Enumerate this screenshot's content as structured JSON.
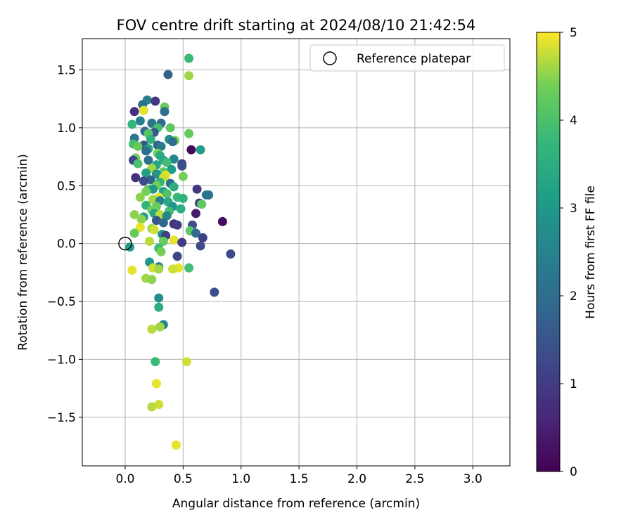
{
  "chart_data": {
    "type": "scatter",
    "title": "FOV centre drift starting at 2024/08/10 21:42:54",
    "xlabel": "Angular distance from reference (arcmin)",
    "ylabel": "Rotation from reference (arcmin)",
    "xlim": [
      -0.37,
      3.32
    ],
    "ylim": [
      -1.92,
      1.77
    ],
    "xticks": [
      "0.0",
      "0.5",
      "1.0",
      "1.5",
      "2.0",
      "2.5",
      "3.0"
    ],
    "yticks": [
      "−1.5",
      "−1.0",
      "−0.5",
      "0.0",
      "0.5",
      "1.0",
      "1.5"
    ],
    "grid": true,
    "legend": {
      "placement": "top-right",
      "entries": [
        "Reference platepar"
      ]
    },
    "reference_point": {
      "x": 0.0,
      "y": 0.0
    },
    "colorbar": {
      "label": "Hours from first FF file",
      "colormap": "viridis",
      "range": [
        0,
        5
      ],
      "ticks": [
        "0",
        "1",
        "2",
        "3",
        "4",
        "5"
      ]
    },
    "points": [
      {
        "x": 0.55,
        "y": 1.6,
        "h": 3.8
      },
      {
        "x": 0.37,
        "y": 1.46,
        "h": 1.8
      },
      {
        "x": 0.55,
        "y": 1.45,
        "h": 4.6
      },
      {
        "x": 0.19,
        "y": 1.24,
        "h": 2.5
      },
      {
        "x": 0.26,
        "y": 1.23,
        "h": 0.9
      },
      {
        "x": 0.15,
        "y": 1.2,
        "h": 2.1
      },
      {
        "x": 0.34,
        "y": 1.18,
        "h": 4.3
      },
      {
        "x": 0.08,
        "y": 1.14,
        "h": 0.8
      },
      {
        "x": 0.16,
        "y": 1.15,
        "h": 4.9
      },
      {
        "x": 0.34,
        "y": 1.14,
        "h": 2.0
      },
      {
        "x": 0.13,
        "y": 1.06,
        "h": 2.4
      },
      {
        "x": 0.23,
        "y": 1.04,
        "h": 2.2
      },
      {
        "x": 0.31,
        "y": 1.04,
        "h": 2.0
      },
      {
        "x": 0.06,
        "y": 1.03,
        "h": 3.7
      },
      {
        "x": 0.28,
        "y": 1.0,
        "h": 3.9
      },
      {
        "x": 0.39,
        "y": 1.0,
        "h": 4.2
      },
      {
        "x": 0.17,
        "y": 0.97,
        "h": 1.9
      },
      {
        "x": 0.25,
        "y": 0.96,
        "h": 1.6
      },
      {
        "x": 0.2,
        "y": 0.95,
        "h": 4.1
      },
      {
        "x": 0.55,
        "y": 0.95,
        "h": 4.3
      },
      {
        "x": 0.08,
        "y": 0.91,
        "h": 2.2
      },
      {
        "x": 0.22,
        "y": 0.9,
        "h": 3.6
      },
      {
        "x": 0.38,
        "y": 0.9,
        "h": 2.8
      },
      {
        "x": 0.43,
        "y": 0.89,
        "h": 4.4
      },
      {
        "x": 0.41,
        "y": 0.88,
        "h": 2.0
      },
      {
        "x": 0.07,
        "y": 0.86,
        "h": 3.9
      },
      {
        "x": 0.16,
        "y": 0.85,
        "h": 1.5
      },
      {
        "x": 0.28,
        "y": 0.85,
        "h": 1.8
      },
      {
        "x": 0.31,
        "y": 0.84,
        "h": 2.3
      },
      {
        "x": 0.11,
        "y": 0.84,
        "h": 4.3
      },
      {
        "x": 0.2,
        "y": 0.82,
        "h": 3.3
      },
      {
        "x": 0.57,
        "y": 0.81,
        "h": 0.1
      },
      {
        "x": 0.65,
        "y": 0.81,
        "h": 3.1
      },
      {
        "x": 0.18,
        "y": 0.8,
        "h": 2.0
      },
      {
        "x": 0.28,
        "y": 0.78,
        "h": 4.4
      },
      {
        "x": 0.3,
        "y": 0.76,
        "h": 3.5
      },
      {
        "x": 0.09,
        "y": 0.74,
        "h": 4.4
      },
      {
        "x": 0.42,
        "y": 0.73,
        "h": 2.6
      },
      {
        "x": 0.07,
        "y": 0.72,
        "h": 1.2
      },
      {
        "x": 0.2,
        "y": 0.72,
        "h": 2.1
      },
      {
        "x": 0.33,
        "y": 0.72,
        "h": 3.4
      },
      {
        "x": 0.36,
        "y": 0.7,
        "h": 3.9
      },
      {
        "x": 0.49,
        "y": 0.69,
        "h": 1.2
      },
      {
        "x": 0.11,
        "y": 0.69,
        "h": 4.0
      },
      {
        "x": 0.27,
        "y": 0.68,
        "h": 3.3
      },
      {
        "x": 0.49,
        "y": 0.67,
        "h": 1.4
      },
      {
        "x": 0.23,
        "y": 0.65,
        "h": 4.6
      },
      {
        "x": 0.4,
        "y": 0.64,
        "h": 3.1
      },
      {
        "x": 0.33,
        "y": 0.62,
        "h": 4.2
      },
      {
        "x": 0.18,
        "y": 0.61,
        "h": 3.2
      },
      {
        "x": 0.27,
        "y": 0.6,
        "h": 2.9
      },
      {
        "x": 0.35,
        "y": 0.59,
        "h": 4.9
      },
      {
        "x": 0.5,
        "y": 0.58,
        "h": 4.4
      },
      {
        "x": 0.33,
        "y": 0.57,
        "h": 4.8
      },
      {
        "x": 0.09,
        "y": 0.57,
        "h": 0.8
      },
      {
        "x": 0.22,
        "y": 0.55,
        "h": 1.8
      },
      {
        "x": 0.16,
        "y": 0.54,
        "h": 1.3
      },
      {
        "x": 0.3,
        "y": 0.53,
        "h": 3.7
      },
      {
        "x": 0.39,
        "y": 0.52,
        "h": 2.1
      },
      {
        "x": 0.27,
        "y": 0.5,
        "h": 4.4
      },
      {
        "x": 0.42,
        "y": 0.49,
        "h": 3.5
      },
      {
        "x": 0.2,
        "y": 0.47,
        "h": 4.2
      },
      {
        "x": 0.24,
        "y": 0.47,
        "h": 3.0
      },
      {
        "x": 0.62,
        "y": 0.47,
        "h": 0.9
      },
      {
        "x": 0.18,
        "y": 0.45,
        "h": 4.4
      },
      {
        "x": 0.33,
        "y": 0.45,
        "h": 3.2
      },
      {
        "x": 0.36,
        "y": 0.43,
        "h": 4.0
      },
      {
        "x": 0.7,
        "y": 0.42,
        "h": 2.2
      },
      {
        "x": 0.72,
        "y": 0.42,
        "h": 2.1
      },
      {
        "x": 0.13,
        "y": 0.4,
        "h": 4.5
      },
      {
        "x": 0.29,
        "y": 0.4,
        "h": 4.9
      },
      {
        "x": 0.45,
        "y": 0.4,
        "h": 3.8
      },
      {
        "x": 0.5,
        "y": 0.39,
        "h": 3.6
      },
      {
        "x": 0.24,
        "y": 0.38,
        "h": 4.6
      },
      {
        "x": 0.3,
        "y": 0.37,
        "h": 2.4
      },
      {
        "x": 0.37,
        "y": 0.36,
        "h": 3.4
      },
      {
        "x": 0.64,
        "y": 0.35,
        "h": 1.1
      },
      {
        "x": 0.66,
        "y": 0.34,
        "h": 4.2
      },
      {
        "x": 0.18,
        "y": 0.33,
        "h": 3.7
      },
      {
        "x": 0.27,
        "y": 0.32,
        "h": 4.3
      },
      {
        "x": 0.41,
        "y": 0.32,
        "h": 2.9
      },
      {
        "x": 0.48,
        "y": 0.3,
        "h": 3.5
      },
      {
        "x": 0.23,
        "y": 0.29,
        "h": 4.4
      },
      {
        "x": 0.38,
        "y": 0.28,
        "h": 3.9
      },
      {
        "x": 0.61,
        "y": 0.26,
        "h": 0.4
      },
      {
        "x": 0.25,
        "y": 0.26,
        "h": 3.3
      },
      {
        "x": 0.08,
        "y": 0.25,
        "h": 4.5
      },
      {
        "x": 0.3,
        "y": 0.25,
        "h": 4.7
      },
      {
        "x": 0.36,
        "y": 0.24,
        "h": 2.6
      },
      {
        "x": 0.16,
        "y": 0.23,
        "h": 3.2
      },
      {
        "x": 0.14,
        "y": 0.21,
        "h": 4.5
      },
      {
        "x": 0.27,
        "y": 0.2,
        "h": 1.5
      },
      {
        "x": 0.84,
        "y": 0.19,
        "h": 0.2
      },
      {
        "x": 0.33,
        "y": 0.18,
        "h": 1.9
      },
      {
        "x": 0.42,
        "y": 0.17,
        "h": 0.8
      },
      {
        "x": 0.45,
        "y": 0.16,
        "h": 1.0
      },
      {
        "x": 0.58,
        "y": 0.16,
        "h": 1.4
      },
      {
        "x": 0.13,
        "y": 0.14,
        "h": 4.9
      },
      {
        "x": 0.23,
        "y": 0.13,
        "h": 4.6
      },
      {
        "x": 0.25,
        "y": 0.12,
        "h": 4.8
      },
      {
        "x": 0.56,
        "y": 0.11,
        "h": 4.2
      },
      {
        "x": 0.61,
        "y": 0.09,
        "h": 2.0
      },
      {
        "x": 0.08,
        "y": 0.09,
        "h": 4.3
      },
      {
        "x": 0.32,
        "y": 0.08,
        "h": 2.9
      },
      {
        "x": 0.35,
        "y": 0.07,
        "h": 1.0
      },
      {
        "x": 0.67,
        "y": 0.05,
        "h": 1.1
      },
      {
        "x": 0.42,
        "y": 0.03,
        "h": 4.9
      },
      {
        "x": 0.21,
        "y": 0.02,
        "h": 4.7
      },
      {
        "x": 0.33,
        "y": 0.02,
        "h": 4.3
      },
      {
        "x": 0.49,
        "y": 0.01,
        "h": 1.0
      },
      {
        "x": 0.65,
        "y": -0.02,
        "h": 1.3
      },
      {
        "x": 0.04,
        "y": -0.03,
        "h": 3.1
      },
      {
        "x": 0.29,
        "y": -0.04,
        "h": 3.8
      },
      {
        "x": 0.31,
        "y": -0.07,
        "h": 4.4
      },
      {
        "x": 0.91,
        "y": -0.09,
        "h": 1.3
      },
      {
        "x": 0.45,
        "y": -0.11,
        "h": 1.2
      },
      {
        "x": 0.21,
        "y": -0.16,
        "h": 3.0
      },
      {
        "x": 0.29,
        "y": -0.2,
        "h": 2.4
      },
      {
        "x": 0.24,
        "y": -0.21,
        "h": 4.8
      },
      {
        "x": 0.46,
        "y": -0.21,
        "h": 4.9
      },
      {
        "x": 0.55,
        "y": -0.21,
        "h": 3.9
      },
      {
        "x": 0.29,
        "y": -0.22,
        "h": 4.6
      },
      {
        "x": 0.41,
        "y": -0.22,
        "h": 4.8
      },
      {
        "x": 0.06,
        "y": -0.23,
        "h": 4.9
      },
      {
        "x": 0.18,
        "y": -0.3,
        "h": 4.6
      },
      {
        "x": 0.23,
        "y": -0.31,
        "h": 4.5
      },
      {
        "x": 0.77,
        "y": -0.42,
        "h": 1.4
      },
      {
        "x": 0.29,
        "y": -0.47,
        "h": 2.8
      },
      {
        "x": 0.29,
        "y": -0.55,
        "h": 3.5
      },
      {
        "x": 0.33,
        "y": -0.7,
        "h": 2.6
      },
      {
        "x": 0.3,
        "y": -0.72,
        "h": 4.6
      },
      {
        "x": 0.23,
        "y": -0.74,
        "h": 4.7
      },
      {
        "x": 0.26,
        "y": -1.02,
        "h": 3.8
      },
      {
        "x": 0.53,
        "y": -1.02,
        "h": 4.8
      },
      {
        "x": 0.27,
        "y": -1.21,
        "h": 4.9
      },
      {
        "x": 0.29,
        "y": -1.39,
        "h": 4.8
      },
      {
        "x": 0.23,
        "y": -1.41,
        "h": 4.7
      },
      {
        "x": 0.44,
        "y": -1.74,
        "h": 4.9
      }
    ]
  }
}
